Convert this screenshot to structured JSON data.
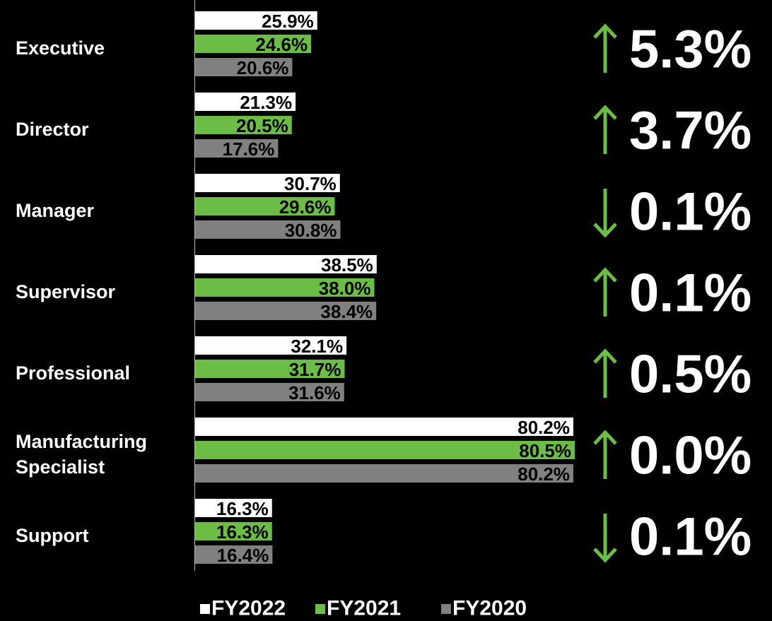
{
  "chart_data": {
    "type": "bar",
    "orientation": "horizontal",
    "categories": [
      "Executive",
      "Director",
      "Manager",
      "Supervisor",
      "Professional",
      "Manufacturing Specialist",
      "Support"
    ],
    "series": [
      {
        "name": "FY2022",
        "color": "#ffffff",
        "values": [
          25.9,
          21.3,
          30.7,
          38.5,
          32.1,
          80.2,
          16.3
        ],
        "value_labels": [
          "25.9%",
          "21.3%",
          "30.7%",
          "38.5%",
          "32.1%",
          "80.2%",
          "16.3%"
        ]
      },
      {
        "name": "FY2021",
        "color": "#6cbd45",
        "values": [
          24.6,
          20.5,
          29.6,
          38.0,
          31.7,
          80.5,
          16.3
        ],
        "value_labels": [
          "24.6%",
          "20.5%",
          "29.6%",
          "38.0%",
          "31.7%",
          "80.5%",
          "16.3%"
        ]
      },
      {
        "name": "FY2020",
        "color": "#808080",
        "values": [
          20.6,
          17.6,
          30.8,
          38.4,
          31.6,
          80.2,
          16.4
        ],
        "value_labels": [
          "20.6%",
          "17.6%",
          "30.8%",
          "38.4%",
          "31.6%",
          "80.2%",
          "16.4%"
        ]
      }
    ],
    "changes": {
      "labels": [
        "5.3%",
        "3.7%",
        "0.1%",
        "0.1%",
        "0.5%",
        "0.0%",
        "0.1%"
      ],
      "directions": [
        "up",
        "up",
        "down",
        "up",
        "up",
        "up",
        "down"
      ],
      "color": "#6cbd45"
    },
    "legend": "bottom"
  }
}
